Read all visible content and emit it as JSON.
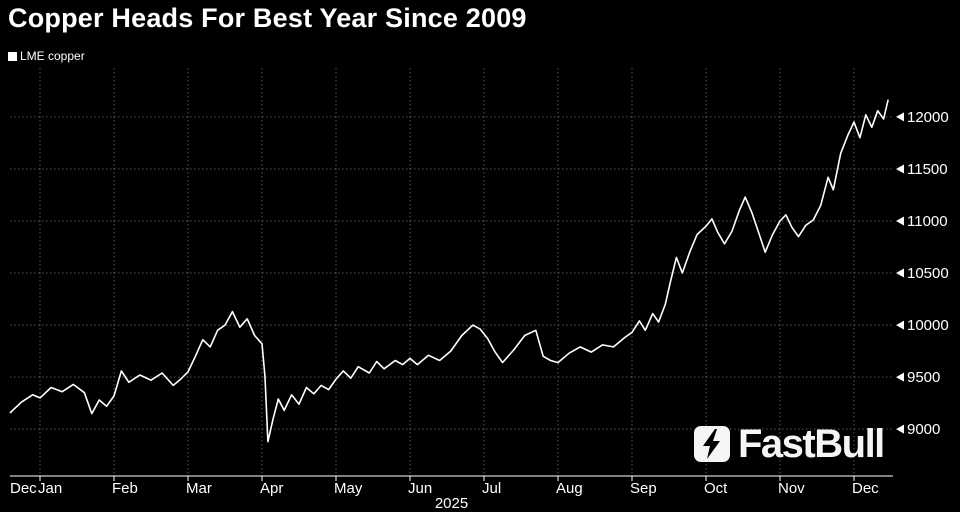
{
  "title": "Copper Heads For Best Year Since 2009",
  "legend": {
    "label": "LME copper"
  },
  "watermark": {
    "text": "FastBull"
  },
  "x_axis": {
    "tick_labels": [
      "Dec",
      "Jan",
      "Feb",
      "Mar",
      "Apr",
      "May",
      "Jun",
      "Jul",
      "Aug",
      "Sep",
      "Oct",
      "Nov",
      "Dec"
    ],
    "year_label": "2025"
  },
  "y_axis": {
    "ticks": [
      9000,
      9500,
      10000,
      10500,
      11000,
      11500,
      12000
    ]
  },
  "colors": {
    "background": "#000000",
    "line": "#ffffff",
    "grid": "#575757",
    "text": "#ffffff",
    "axis": "#ffffff"
  },
  "chart_data": {
    "type": "line",
    "title": "Copper Heads For Best Year Since 2009",
    "xlabel": "2025",
    "ylabel": "",
    "legend_position": "top-left",
    "y_axis_side": "right",
    "grid": "dotted",
    "x_encoding": "months since 2025-01-01 (0 = Jan 1 2025, negative = Dec 2024)",
    "x_tick_labels": [
      "Dec",
      "Jan",
      "Feb",
      "Mar",
      "Apr",
      "May",
      "Jun",
      "Jul",
      "Aug",
      "Sep",
      "Oct",
      "Nov",
      "Dec"
    ],
    "y_ticks": [
      9000,
      9500,
      10000,
      10500,
      11000,
      11500,
      12000
    ],
    "ylim": [
      8550,
      12470
    ],
    "xlim_months": [
      -0.4,
      11.46
    ],
    "series": [
      {
        "name": "LME copper",
        "points": [
          [
            -0.4,
            9160
          ],
          [
            -0.25,
            9260
          ],
          [
            -0.1,
            9330
          ],
          [
            0.0,
            9300
          ],
          [
            0.15,
            9400
          ],
          [
            0.3,
            9360
          ],
          [
            0.45,
            9430
          ],
          [
            0.6,
            9350
          ],
          [
            0.7,
            9150
          ],
          [
            0.8,
            9280
          ],
          [
            0.9,
            9220
          ],
          [
            1.0,
            9320
          ],
          [
            1.1,
            9560
          ],
          [
            1.2,
            9450
          ],
          [
            1.35,
            9520
          ],
          [
            1.5,
            9470
          ],
          [
            1.65,
            9540
          ],
          [
            1.8,
            9420
          ],
          [
            1.9,
            9480
          ],
          [
            2.0,
            9550
          ],
          [
            2.1,
            9700
          ],
          [
            2.2,
            9860
          ],
          [
            2.3,
            9790
          ],
          [
            2.4,
            9950
          ],
          [
            2.5,
            10000
          ],
          [
            2.6,
            10130
          ],
          [
            2.7,
            9980
          ],
          [
            2.8,
            10060
          ],
          [
            2.9,
            9900
          ],
          [
            3.0,
            9820
          ],
          [
            3.04,
            9500
          ],
          [
            3.08,
            8880
          ],
          [
            3.15,
            9100
          ],
          [
            3.22,
            9290
          ],
          [
            3.3,
            9180
          ],
          [
            3.4,
            9330
          ],
          [
            3.5,
            9240
          ],
          [
            3.6,
            9400
          ],
          [
            3.7,
            9340
          ],
          [
            3.8,
            9420
          ],
          [
            3.9,
            9380
          ],
          [
            4.0,
            9480
          ],
          [
            4.1,
            9560
          ],
          [
            4.2,
            9490
          ],
          [
            4.3,
            9600
          ],
          [
            4.45,
            9540
          ],
          [
            4.55,
            9650
          ],
          [
            4.65,
            9580
          ],
          [
            4.8,
            9660
          ],
          [
            4.9,
            9620
          ],
          [
            5.0,
            9680
          ],
          [
            5.1,
            9620
          ],
          [
            5.25,
            9710
          ],
          [
            5.4,
            9660
          ],
          [
            5.55,
            9750
          ],
          [
            5.7,
            9900
          ],
          [
            5.85,
            10000
          ],
          [
            5.95,
            9960
          ],
          [
            6.05,
            9870
          ],
          [
            6.15,
            9740
          ],
          [
            6.25,
            9640
          ],
          [
            6.4,
            9760
          ],
          [
            6.55,
            9900
          ],
          [
            6.7,
            9950
          ],
          [
            6.8,
            9700
          ],
          [
            6.9,
            9660
          ],
          [
            7.0,
            9640
          ],
          [
            7.15,
            9730
          ],
          [
            7.3,
            9790
          ],
          [
            7.45,
            9740
          ],
          [
            7.6,
            9810
          ],
          [
            7.75,
            9790
          ],
          [
            7.9,
            9880
          ],
          [
            8.0,
            9930
          ],
          [
            8.1,
            10040
          ],
          [
            8.18,
            9950
          ],
          [
            8.28,
            10110
          ],
          [
            8.36,
            10030
          ],
          [
            8.45,
            10200
          ],
          [
            8.52,
            10420
          ],
          [
            8.6,
            10650
          ],
          [
            8.68,
            10500
          ],
          [
            8.78,
            10700
          ],
          [
            8.88,
            10870
          ],
          [
            9.0,
            10950
          ],
          [
            9.08,
            11020
          ],
          [
            9.16,
            10890
          ],
          [
            9.25,
            10780
          ],
          [
            9.35,
            10900
          ],
          [
            9.45,
            11100
          ],
          [
            9.53,
            11230
          ],
          [
            9.62,
            11080
          ],
          [
            9.72,
            10870
          ],
          [
            9.8,
            10700
          ],
          [
            9.9,
            10870
          ],
          [
            10.0,
            11000
          ],
          [
            10.08,
            11060
          ],
          [
            10.16,
            10940
          ],
          [
            10.25,
            10850
          ],
          [
            10.35,
            10960
          ],
          [
            10.45,
            11010
          ],
          [
            10.55,
            11150
          ],
          [
            10.65,
            11420
          ],
          [
            10.72,
            11300
          ],
          [
            10.82,
            11650
          ],
          [
            10.92,
            11830
          ],
          [
            11.0,
            11950
          ],
          [
            11.08,
            11800
          ],
          [
            11.16,
            12020
          ],
          [
            11.24,
            11900
          ],
          [
            11.32,
            12060
          ],
          [
            11.4,
            11980
          ],
          [
            11.46,
            12160
          ]
        ]
      }
    ]
  }
}
